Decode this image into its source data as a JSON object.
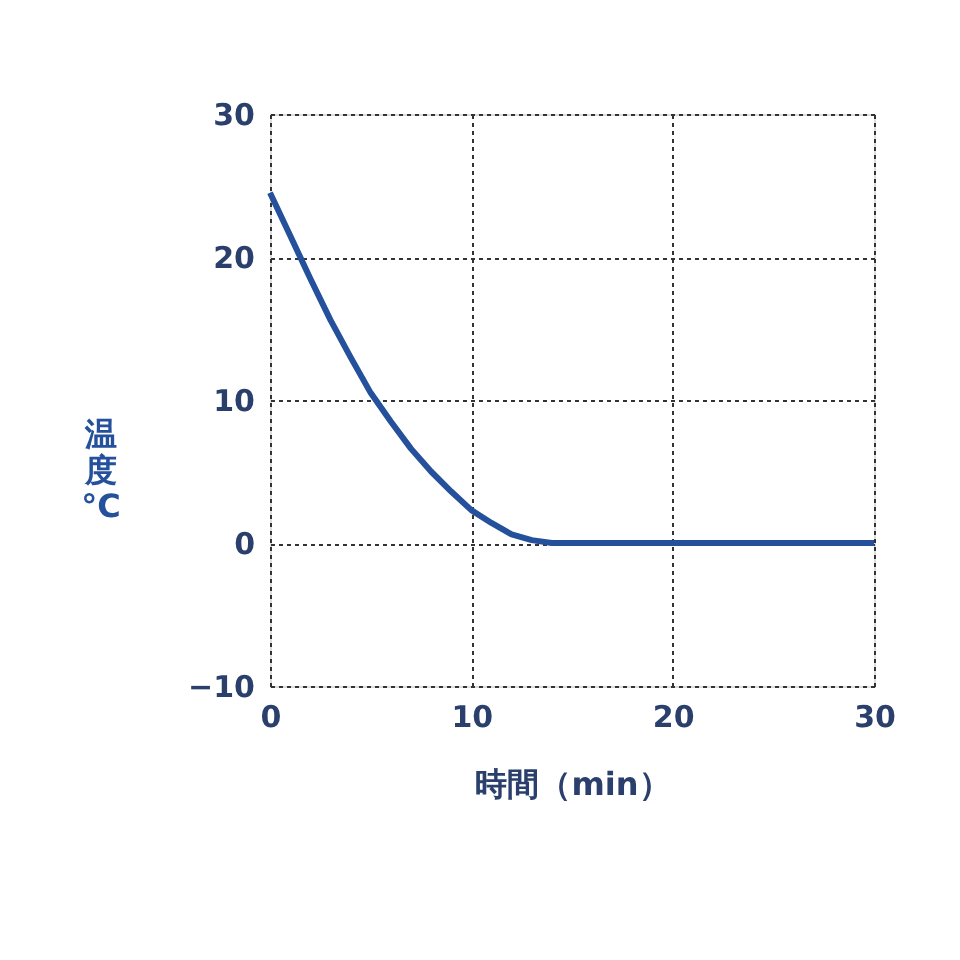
{
  "chart_data": {
    "type": "line",
    "xlabel": "時間（min）",
    "ylabel": "温度°C",
    "x": [
      0,
      1,
      2,
      3,
      4,
      5,
      6,
      7,
      8,
      9,
      10,
      11,
      12,
      13,
      14,
      20,
      30
    ],
    "series": [
      {
        "color": "#24509c",
        "values": [
          24.5,
          21.5,
          18.5,
          15.6,
          13,
          10.5,
          8.5,
          6.6,
          5,
          3.6,
          2.3,
          1.4,
          0.6,
          0.2,
          0,
          0,
          0
        ]
      }
    ],
    "xlim": [
      0,
      30
    ],
    "ylim": [
      -10,
      30
    ],
    "xticks": [
      0,
      10,
      20,
      30
    ],
    "yticks": [
      -10,
      0,
      10,
      20,
      30
    ],
    "grid": true,
    "marker": "none",
    "line_style": "solid"
  }
}
